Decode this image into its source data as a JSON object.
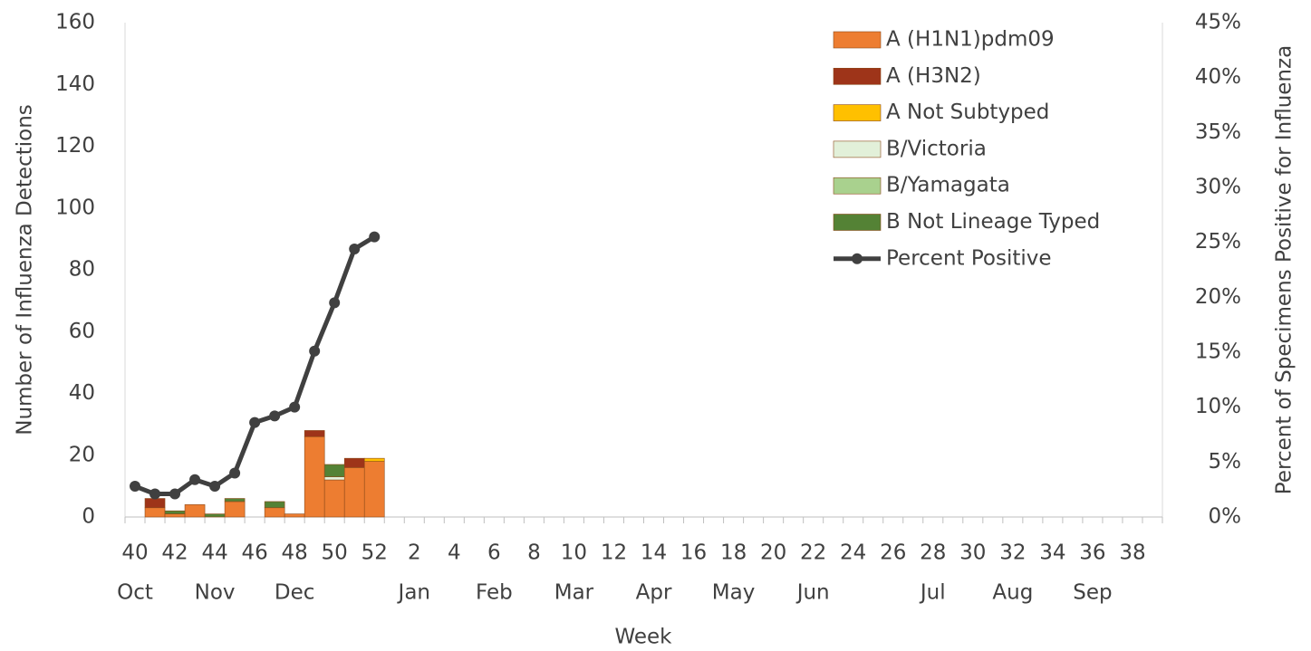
{
  "chart_data": {
    "type": "bar",
    "stacked": true,
    "x_label": "Week",
    "y_label": "Number of Influenza Detections",
    "y2_label": "Percent of Specimens Positive for Influenza",
    "categories": [
      "40",
      null,
      "42",
      null,
      "44",
      null,
      "46",
      null,
      "48",
      null,
      "50",
      null,
      "52",
      null,
      "2",
      null,
      "4",
      null,
      "6",
      null,
      "8",
      null,
      "10",
      null,
      "12",
      null,
      "14",
      null,
      "16",
      null,
      "18",
      null,
      "20",
      null,
      "22",
      null,
      "24",
      null,
      "26",
      null,
      "28",
      null,
      "30",
      null,
      "32",
      null,
      "34",
      null,
      "36",
      null,
      "38",
      null
    ],
    "month_categories": [
      "Oct",
      null,
      null,
      null,
      "Nov",
      null,
      null,
      null,
      "Dec",
      null,
      null,
      null,
      null,
      null,
      "Jan",
      null,
      null,
      null,
      "Feb",
      null,
      null,
      null,
      "Mar",
      null,
      null,
      null,
      "Apr",
      null,
      null,
      null,
      "May",
      null,
      null,
      null,
      "Jun",
      null,
      null,
      null,
      null,
      null,
      "Jul",
      null,
      null,
      null,
      "Aug",
      null,
      null,
      null,
      "Sep",
      null,
      null,
      null
    ],
    "ylim": [
      0,
      160
    ],
    "yticks": [
      0,
      20,
      40,
      60,
      80,
      100,
      120,
      140,
      160
    ],
    "y2lim": [
      0,
      45
    ],
    "y2ticks": [
      {
        "value": 0,
        "label": "0%"
      },
      {
        "value": 5,
        "label": "5%"
      },
      {
        "value": 10,
        "label": "10%"
      },
      {
        "value": 15,
        "label": "15%"
      },
      {
        "value": 20,
        "label": "20%"
      },
      {
        "value": 25,
        "label": "25%"
      },
      {
        "value": 30,
        "label": "30%"
      },
      {
        "value": 35,
        "label": "35%"
      },
      {
        "value": 40,
        "label": "40%"
      },
      {
        "value": 45,
        "label": "45%"
      }
    ],
    "legend": "top-right",
    "series": [
      {
        "name": "A (H1N1)pdm09",
        "color": "#ed7d31",
        "values": [
          0,
          3,
          1,
          4,
          0,
          5,
          0,
          3,
          1,
          26,
          12,
          16,
          18,
          null,
          null,
          null,
          null,
          null,
          null,
          null,
          null,
          null,
          null,
          null,
          null,
          null,
          null,
          null,
          null,
          null,
          null,
          null,
          null,
          null,
          null,
          null,
          null,
          null,
          null,
          null,
          null,
          null,
          null,
          null,
          null,
          null,
          null,
          null,
          null,
          null,
          null,
          null
        ]
      },
      {
        "name": "A (H3N2)",
        "color": "#9e3419",
        "values": [
          0,
          3,
          0,
          0,
          0,
          0,
          0,
          0,
          0,
          2,
          0,
          3,
          0,
          null,
          null,
          null,
          null,
          null,
          null,
          null,
          null,
          null,
          null,
          null,
          null,
          null,
          null,
          null,
          null,
          null,
          null,
          null,
          null,
          null,
          null,
          null,
          null,
          null,
          null,
          null,
          null,
          null,
          null,
          null,
          null,
          null,
          null,
          null,
          null,
          null,
          null,
          null
        ]
      },
      {
        "name": "A Not Subtyped",
        "color": "#ffc000",
        "values": [
          0,
          0,
          0,
          0,
          0,
          0,
          0,
          0,
          0,
          0,
          0,
          0,
          1,
          null,
          null,
          null,
          null,
          null,
          null,
          null,
          null,
          null,
          null,
          null,
          null,
          null,
          null,
          null,
          null,
          null,
          null,
          null,
          null,
          null,
          null,
          null,
          null,
          null,
          null,
          null,
          null,
          null,
          null,
          null,
          null,
          null,
          null,
          null,
          null,
          null,
          null,
          null
        ]
      },
      {
        "name": "B/Victoria",
        "color": "#e2f0d9",
        "values": [
          0,
          0,
          0,
          0,
          0,
          0,
          0,
          0,
          0,
          0,
          1,
          0,
          0,
          null,
          null,
          null,
          null,
          null,
          null,
          null,
          null,
          null,
          null,
          null,
          null,
          null,
          null,
          null,
          null,
          null,
          null,
          null,
          null,
          null,
          null,
          null,
          null,
          null,
          null,
          null,
          null,
          null,
          null,
          null,
          null,
          null,
          null,
          null,
          null,
          null,
          null,
          null
        ]
      },
      {
        "name": "B/Yamagata",
        "color": "#a9d18e",
        "values": [
          0,
          0,
          0,
          0,
          0,
          0,
          0,
          0,
          0,
          0,
          0,
          0,
          0,
          null,
          null,
          null,
          null,
          null,
          null,
          null,
          null,
          null,
          null,
          null,
          null,
          null,
          null,
          null,
          null,
          null,
          null,
          null,
          null,
          null,
          null,
          null,
          null,
          null,
          null,
          null,
          null,
          null,
          null,
          null,
          null,
          null,
          null,
          null,
          null,
          null,
          null,
          null
        ]
      },
      {
        "name": "B Not Lineage Typed",
        "color": "#548235",
        "values": [
          0,
          0,
          1,
          0,
          1,
          1,
          0,
          2,
          0,
          0,
          4,
          0,
          0,
          null,
          null,
          null,
          null,
          null,
          null,
          null,
          null,
          null,
          null,
          null,
          null,
          null,
          null,
          null,
          null,
          null,
          null,
          null,
          null,
          null,
          null,
          null,
          null,
          null,
          null,
          null,
          null,
          null,
          null,
          null,
          null,
          null,
          null,
          null,
          null,
          null,
          null,
          null
        ]
      },
      {
        "name": "Percent Positive",
        "color": "#404040",
        "type": "line",
        "axis": "y2",
        "values": [
          2.8,
          2.1,
          2.1,
          3.4,
          2.8,
          4.0,
          8.6,
          9.2,
          10.0,
          15.1,
          19.5,
          24.4,
          25.5,
          null,
          null,
          null,
          null,
          null,
          null,
          null,
          null,
          null,
          null,
          null,
          null,
          null,
          null,
          null,
          null,
          null,
          null,
          null,
          null,
          null,
          null,
          null,
          null,
          null,
          null,
          null,
          null,
          null,
          null,
          null,
          null,
          null,
          null,
          null,
          null,
          null,
          null,
          null
        ]
      }
    ]
  }
}
